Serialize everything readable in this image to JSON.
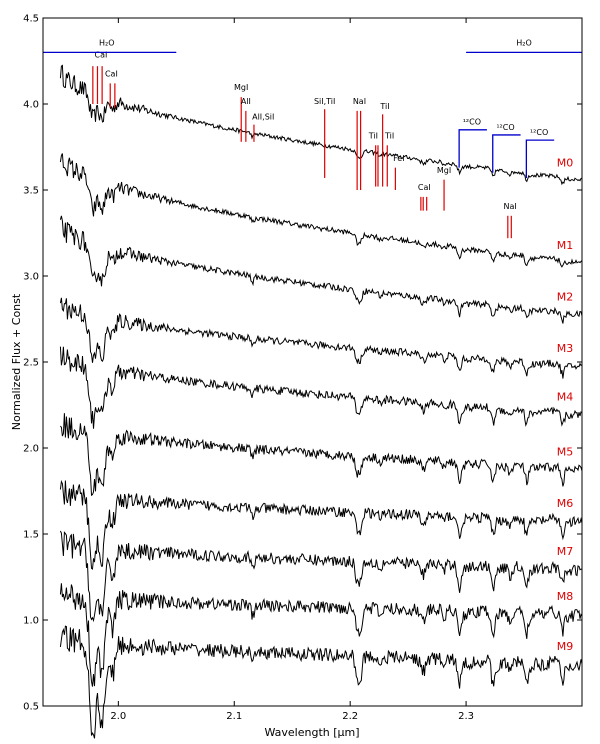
{
  "chart_data": {
    "type": "line",
    "title": "",
    "xlabel": "Wavelength [μm]",
    "ylabel": "Normalized Flux + Const",
    "xlim": [
      1.935,
      2.4
    ],
    "ylim": [
      0.5,
      4.5
    ],
    "x_ticks": [
      "2.0",
      "2.1",
      "2.2",
      "2.3"
    ],
    "x_tick_values": [
      2.0,
      2.1,
      2.2,
      2.3
    ],
    "y_ticks": [
      "0.5",
      "1.0",
      "1.5",
      "2.0",
      "2.5",
      "3.0",
      "3.5",
      "4.0",
      "4.5"
    ],
    "y_tick_values": [
      0.5,
      1.0,
      1.5,
      2.0,
      2.5,
      3.0,
      3.5,
      4.0,
      4.5
    ],
    "grid": false,
    "colors": {
      "spectrum": "#000000",
      "line_marker": "#e00000",
      "band_marker": "#0000cc",
      "type_label": "#e00000"
    },
    "series": [
      {
        "name": "M0",
        "end_level": 3.56,
        "start_level": 4.2,
        "start_x": 1.95
      },
      {
        "name": "M1",
        "end_level": 3.08,
        "start_level": 3.7,
        "start_x": 1.95
      },
      {
        "name": "M2",
        "end_level": 2.78,
        "start_level": 3.3,
        "start_x": 1.95
      },
      {
        "name": "M3",
        "end_level": 2.48,
        "start_level": 2.85,
        "start_x": 1.95
      },
      {
        "name": "M4",
        "end_level": 2.2,
        "start_level": 2.55,
        "start_x": 1.95
      },
      {
        "name": "M5",
        "end_level": 1.88,
        "start_level": 2.15,
        "start_x": 1.95
      },
      {
        "name": "M6",
        "end_level": 1.58,
        "start_level": 1.75,
        "start_x": 1.95
      },
      {
        "name": "M7",
        "end_level": 1.3,
        "start_level": 1.45,
        "start_x": 1.95
      },
      {
        "name": "M8",
        "end_level": 1.04,
        "start_level": 1.15,
        "start_x": 1.95
      },
      {
        "name": "M9",
        "end_level": 0.75,
        "start_level": 0.9,
        "start_x": 1.95
      }
    ],
    "line_labels": [
      {
        "label": "CaI",
        "label_x": 1.985,
        "label_y": 4.27,
        "lines": [
          1.978,
          1.982,
          1.986
        ],
        "top": 4.22,
        "bottom": 4.0
      },
      {
        "label": "CaI",
        "label_x": 1.994,
        "label_y": 4.16,
        "lines": [
          1.993,
          1.997
        ],
        "top": 4.12,
        "bottom": 3.98
      },
      {
        "label": "MgI",
        "label_x": 2.106,
        "label_y": 4.08,
        "lines": [
          2.106
        ],
        "top": 4.04,
        "bottom": 3.78
      },
      {
        "label": "AlI",
        "label_x": 2.11,
        "label_y": 4.0,
        "lines": [
          2.11
        ],
        "top": 3.96,
        "bottom": 3.78
      },
      {
        "label": "AlI,SiI",
        "label_x": 2.125,
        "label_y": 3.91,
        "lines": [
          2.117
        ],
        "top": 3.88,
        "bottom": 3.78
      },
      {
        "label": "SiI,TiI",
        "label_x": 2.178,
        "label_y": 4.0,
        "lines": [
          2.178
        ],
        "top": 3.97,
        "bottom": 3.57
      },
      {
        "label": "NaI",
        "label_x": 2.208,
        "label_y": 4.0,
        "lines": [
          2.206,
          2.209
        ],
        "top": 3.96,
        "bottom": 3.5
      },
      {
        "label": "TiI",
        "label_x": 2.22,
        "label_y": 3.8,
        "lines": [
          2.222,
          2.224
        ],
        "top": 3.76,
        "bottom": 3.52
      },
      {
        "label": "TiI",
        "label_x": 2.23,
        "label_y": 3.97,
        "lines": [
          2.228
        ],
        "top": 3.94,
        "bottom": 3.52
      },
      {
        "label": "TiI",
        "label_x": 2.234,
        "label_y": 3.8,
        "lines": [
          2.232
        ],
        "top": 3.76,
        "bottom": 3.52
      },
      {
        "label": "FeI",
        "label_x": 2.242,
        "label_y": 3.67,
        "lines": [
          2.239
        ],
        "top": 3.63,
        "bottom": 3.5
      },
      {
        "label": "CaI",
        "label_x": 2.264,
        "label_y": 3.5,
        "lines": [
          2.261,
          2.263,
          2.266
        ],
        "top": 3.46,
        "bottom": 3.38
      },
      {
        "label": "MgI",
        "label_x": 2.281,
        "label_y": 3.6,
        "lines": [
          2.281
        ],
        "top": 3.56,
        "bottom": 3.38
      },
      {
        "label": "NaI",
        "label_x": 2.338,
        "label_y": 3.39,
        "lines": [
          2.336,
          2.339
        ],
        "top": 3.35,
        "bottom": 3.22
      }
    ],
    "water_bands": [
      {
        "label": "H₂O",
        "x_start": 1.935,
        "x_end": 2.05,
        "y": 4.3,
        "label_x": 1.99,
        "label_y": 4.34
      },
      {
        "label": "H₂O",
        "x_start": 2.3,
        "x_end": 2.4,
        "y": 4.3,
        "label_x": 2.35,
        "label_y": 4.34
      }
    ],
    "co_bandheads": [
      {
        "label": "¹²CO",
        "x_head": 2.294,
        "x_end": 2.318,
        "y": 3.85,
        "drop": 0.22,
        "label_x": 2.305,
        "label_y": 3.88
      },
      {
        "label": "¹²CO",
        "x_head": 2.323,
        "x_end": 2.347,
        "y": 3.82,
        "drop": 0.22,
        "label_x": 2.334,
        "label_y": 3.85
      },
      {
        "label": "¹²CO",
        "x_head": 2.352,
        "x_end": 2.376,
        "y": 3.79,
        "drop": 0.22,
        "label_x": 2.363,
        "label_y": 3.82
      }
    ]
  }
}
